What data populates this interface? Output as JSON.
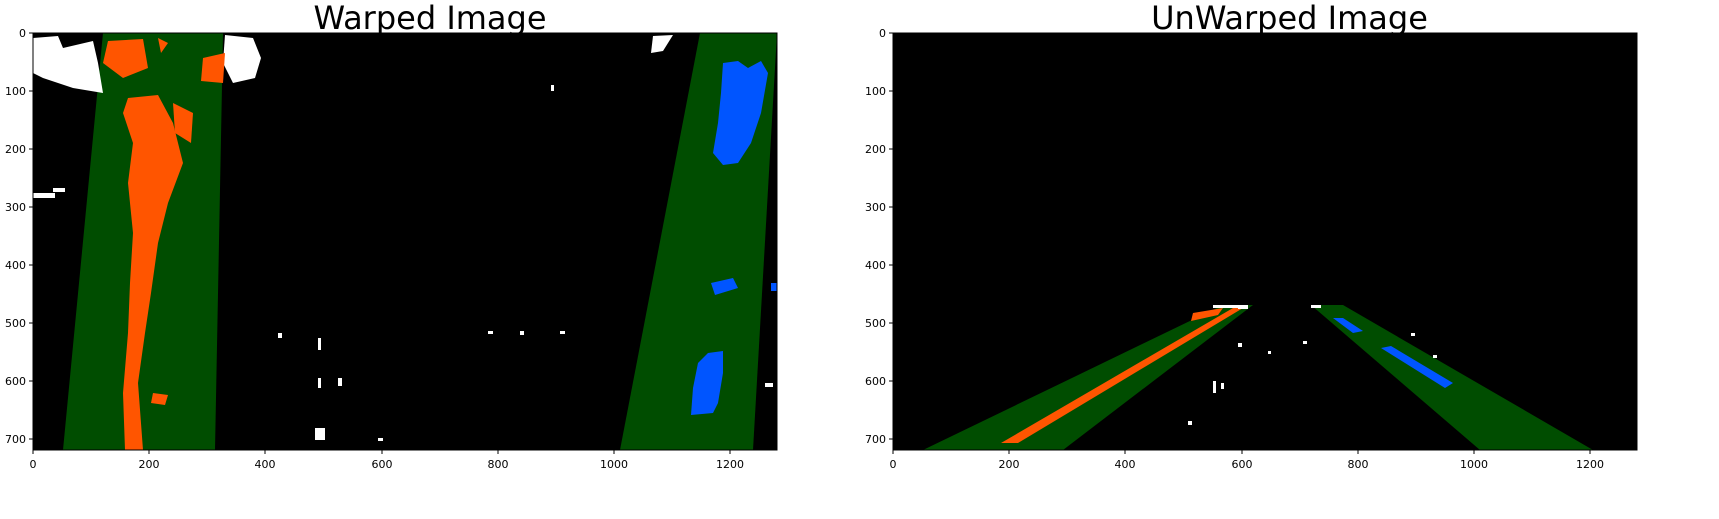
{
  "figure": {
    "left_panel": {
      "title": "Warped Image",
      "x_ticks": [
        "0",
        "200",
        "400",
        "600",
        "800",
        "1000",
        "1200"
      ],
      "y_ticks": [
        "0",
        "100",
        "200",
        "300",
        "400",
        "500",
        "600",
        "700"
      ]
    },
    "right_panel": {
      "title": "UnWarped Image",
      "x_ticks": [
        "0",
        "200",
        "400",
        "600",
        "800",
        "1000",
        "1200"
      ],
      "y_ticks": [
        "0",
        "100",
        "200",
        "300",
        "400",
        "500",
        "600",
        "700"
      ]
    },
    "colors": {
      "background": "#000000",
      "lane_fill": "#004d00",
      "left_lane_pixels": "#ff5500",
      "right_lane_pixels": "#0055ff",
      "binary_noise": "#ffffff"
    }
  }
}
